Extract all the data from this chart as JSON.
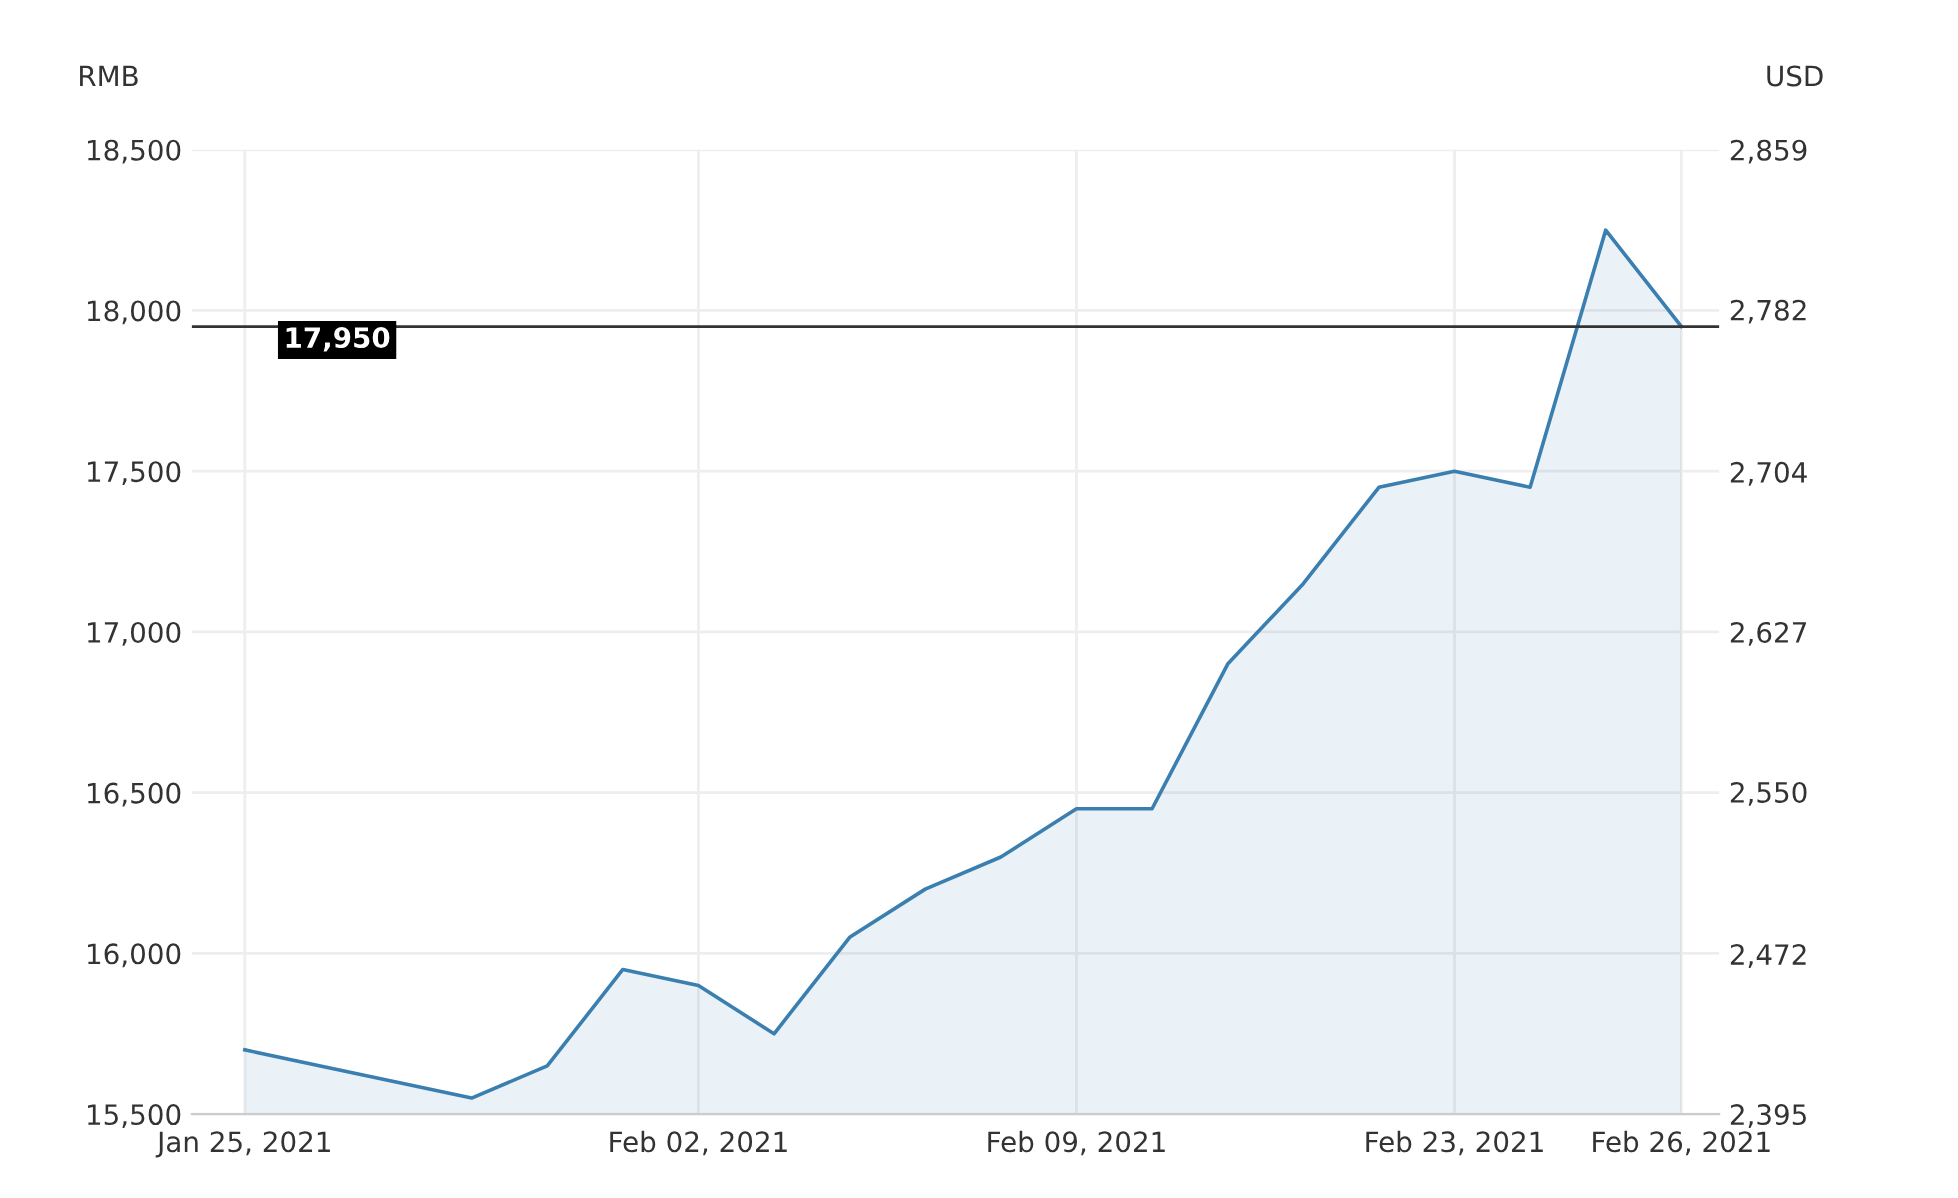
{
  "chart_data": {
    "type": "area",
    "categories": [
      "Jan 25, 2021",
      null,
      null,
      null,
      null,
      null,
      "Feb 02, 2021",
      null,
      null,
      null,
      null,
      "Feb 09, 2021",
      null,
      null,
      null,
      null,
      "Feb 23, 2021",
      null,
      null,
      "Feb 26, 2021"
    ],
    "series": [
      {
        "color": "#3a7fb0",
        "values": [
          15700,
          15650,
          15600,
          15550,
          15650,
          15950,
          15900,
          15750,
          16050,
          16200,
          16300,
          16450,
          16450,
          16900,
          17150,
          17450,
          17500,
          17450,
          18250,
          17950
        ]
      }
    ],
    "ylabel": "RMB",
    "y2label": "USD",
    "ylim": [
      15500,
      18500
    ],
    "yticks": [
      {
        "value": 15500,
        "label": "15,500"
      },
      {
        "value": 16000,
        "label": "16,000"
      },
      {
        "value": 16500,
        "label": "16,500"
      },
      {
        "value": 17000,
        "label": "17,000"
      },
      {
        "value": 17500,
        "label": "17,500"
      },
      {
        "value": 18000,
        "label": "18,000"
      },
      {
        "value": 18500,
        "label": "18,500"
      }
    ],
    "y2lim": [
      2395,
      2859
    ],
    "y2ticks": [
      {
        "value": 2395,
        "label": "2,395"
      },
      {
        "value": 2472,
        "label": "2,472"
      },
      {
        "value": 2550,
        "label": "2,550"
      },
      {
        "value": 2627,
        "label": "2,627"
      },
      {
        "value": 2704,
        "label": "2,704"
      },
      {
        "value": 2782,
        "label": "2,782"
      },
      {
        "value": 2859,
        "label": "2,859"
      }
    ],
    "ref_lines": [
      {
        "axis": "y",
        "value": 17950,
        "label": "17,950",
        "color": "#333333"
      }
    ],
    "grid": true
  }
}
